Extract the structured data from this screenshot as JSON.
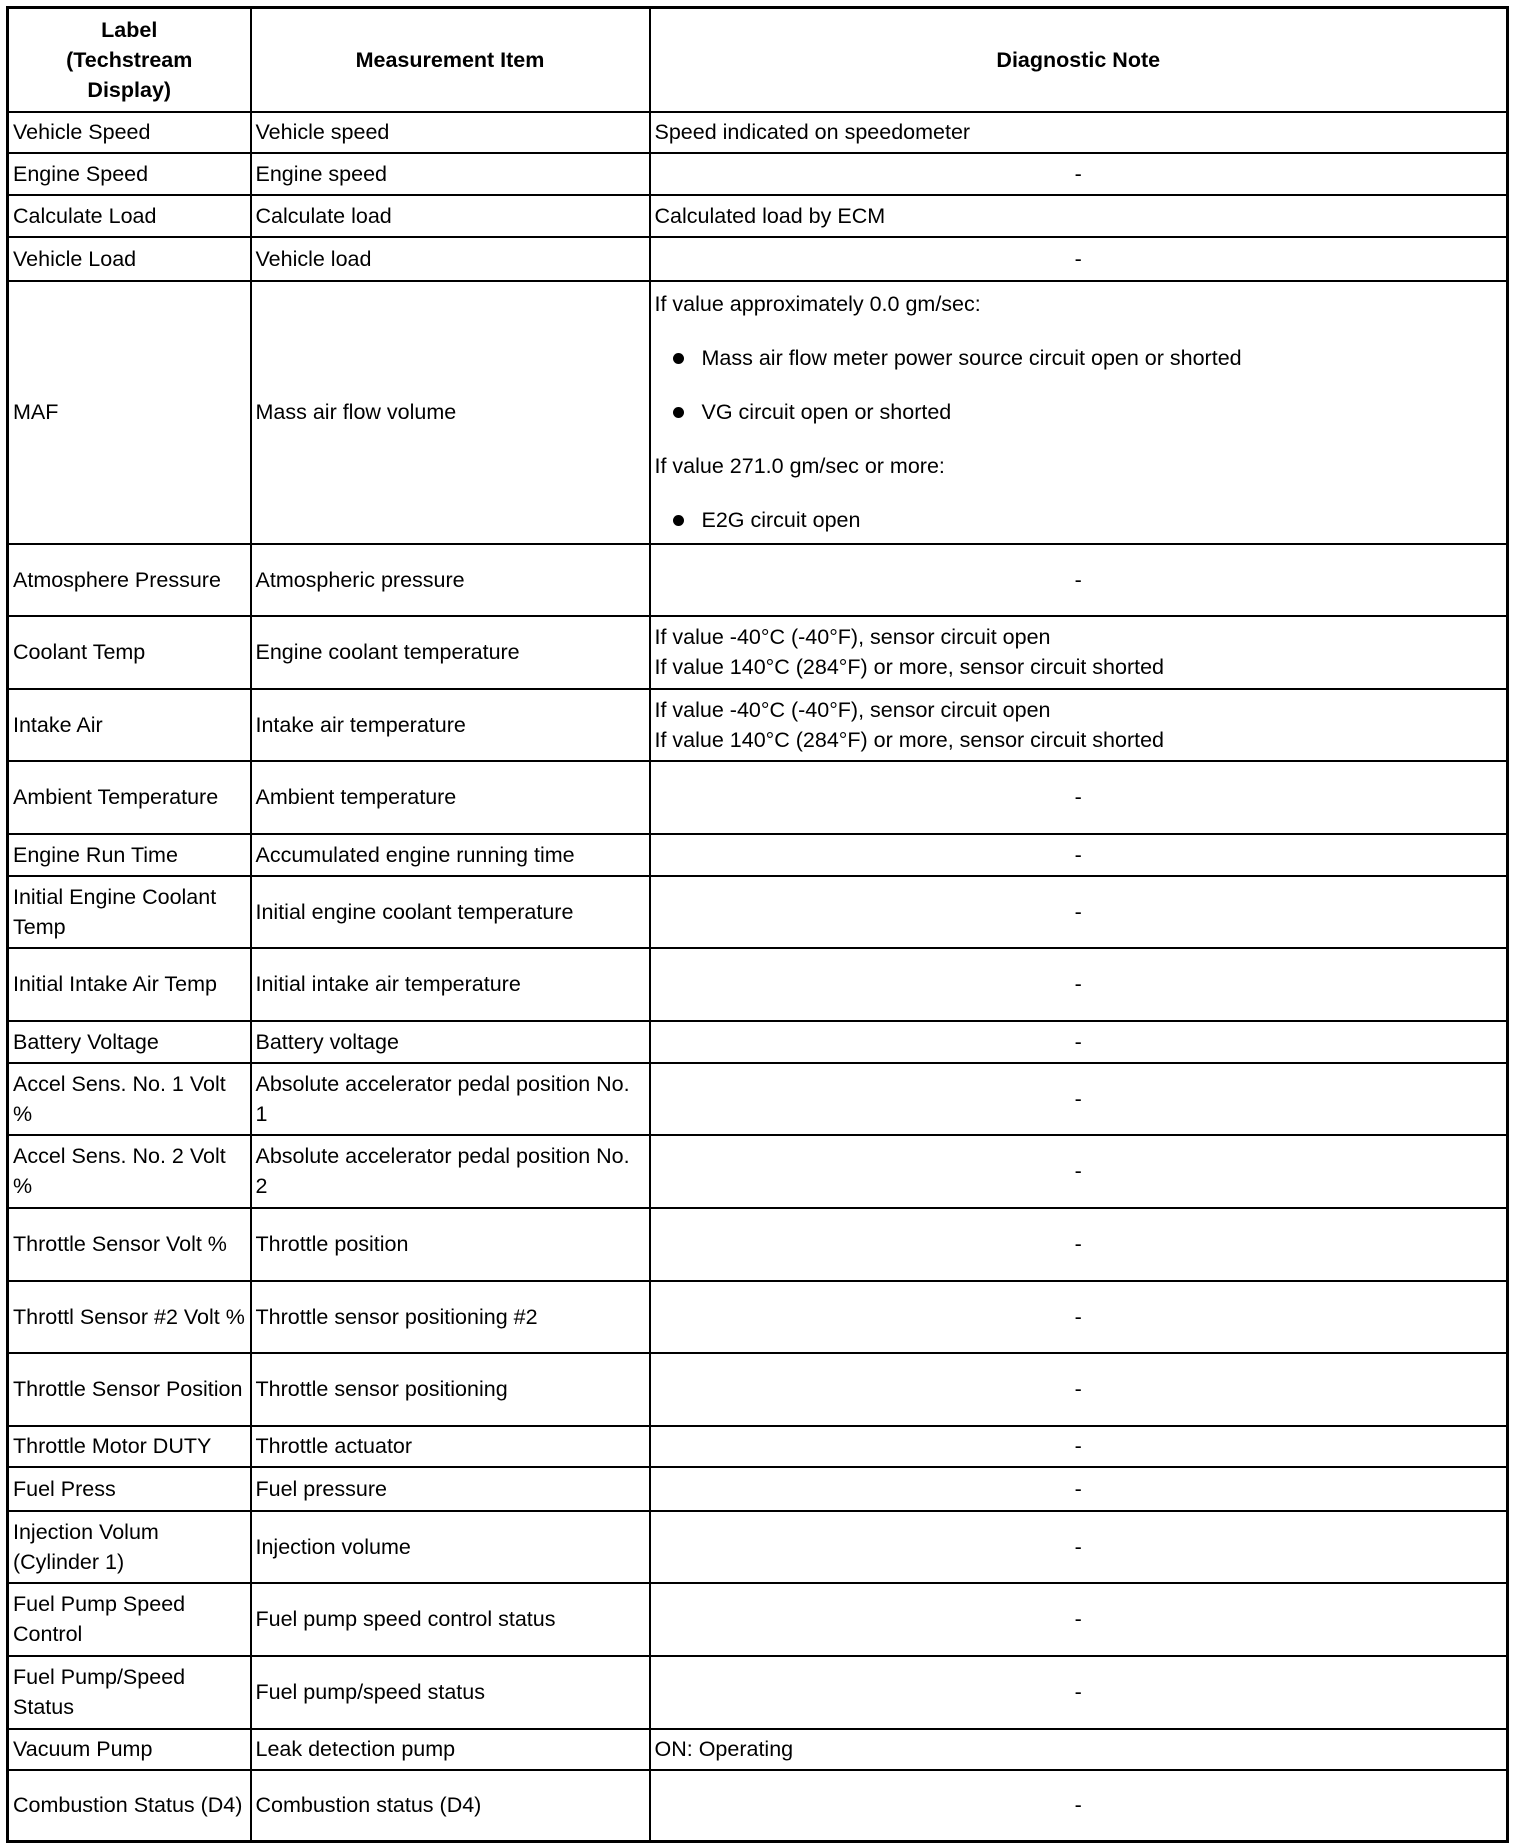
{
  "headers": [
    "Label (Techstream Display)",
    "Measurement Item",
    "Diagnostic Note"
  ],
  "rows": [
    {
      "label": "Vehicle Speed",
      "item": "Vehicle speed",
      "note": "Speed indicated on speedometer"
    },
    {
      "label": "Engine Speed",
      "item": "Engine speed",
      "note": "-"
    },
    {
      "label": "Calculate Load",
      "item": "Calculate load",
      "note": "Calculated load by ECM"
    },
    {
      "label": "Vehicle Load",
      "item": "Vehicle load",
      "note": "-"
    },
    {
      "label": "MAF",
      "item": "Mass air flow volume",
      "note_blocks": [
        {
          "type": "text",
          "text": "If value approximately 0.0 gm/sec:"
        },
        {
          "type": "bullet",
          "text": "Mass air flow meter power source circuit open or shorted"
        },
        {
          "type": "bullet",
          "text": "VG circuit open or shorted"
        },
        {
          "type": "text",
          "text": "If value 271.0 gm/sec or more:"
        },
        {
          "type": "bullet",
          "text": "E2G circuit open"
        }
      ]
    },
    {
      "label": "Atmosphere Pressure",
      "item": "Atmospheric pressure",
      "note": "-"
    },
    {
      "label": "Coolant Temp",
      "item": "Engine coolant temperature",
      "note_lines": [
        "If value -40°C (-40°F), sensor circuit open",
        "If value 140°C (284°F) or more, sensor circuit shorted"
      ]
    },
    {
      "label": "Intake Air",
      "item": "Intake air temperature",
      "note_lines": [
        "If value -40°C (-40°F), sensor circuit open",
        "If value 140°C (284°F) or more, sensor circuit shorted"
      ]
    },
    {
      "label": "Ambient Temperature",
      "item": "Ambient temperature",
      "note": "-"
    },
    {
      "label": "Engine Run Time",
      "item": "Accumulated engine running time",
      "note": "-"
    },
    {
      "label": "Initial Engine Coolant Temp",
      "item": "Initial engine coolant temperature",
      "note": "-"
    },
    {
      "label": "Initial Intake Air Temp",
      "item": "Initial intake air temperature",
      "note": "-"
    },
    {
      "label": "Battery Voltage",
      "item": "Battery voltage",
      "note": "-"
    },
    {
      "label": "Accel Sens. No. 1 Volt %",
      "item": "Absolute accelerator pedal position No. 1",
      "note": "-"
    },
    {
      "label": "Accel Sens. No. 2 Volt %",
      "item": "Absolute accelerator pedal position No. 2",
      "note": "-"
    },
    {
      "label": "Throttle Sensor Volt %",
      "item": "Throttle position",
      "note": "-"
    },
    {
      "label": "Throttl Sensor #2 Volt %",
      "item": "Throttle sensor positioning #2",
      "note": "-"
    },
    {
      "label": "Throttle Sensor Position",
      "item": "Throttle sensor positioning",
      "note": "-"
    },
    {
      "label": "Throttle Motor DUTY",
      "item": "Throttle actuator",
      "note": "-"
    },
    {
      "label": "Fuel Press",
      "item": "Fuel pressure",
      "note": "-"
    },
    {
      "label": "Injection Volum (Cylinder 1)",
      "item": "Injection volume",
      "note": "-"
    },
    {
      "label": "Fuel Pump Speed Control",
      "item": "Fuel pump speed control status",
      "note": "-"
    },
    {
      "label": "Fuel Pump/Speed Status",
      "item": "Fuel pump/speed status",
      "note": "-"
    },
    {
      "label": "Vacuum Pump",
      "item": "Leak detection pump",
      "note": "ON: Operating"
    },
    {
      "label": "Combustion Status (D4)",
      "item": "Combustion status (D4)",
      "note": "-"
    }
  ]
}
